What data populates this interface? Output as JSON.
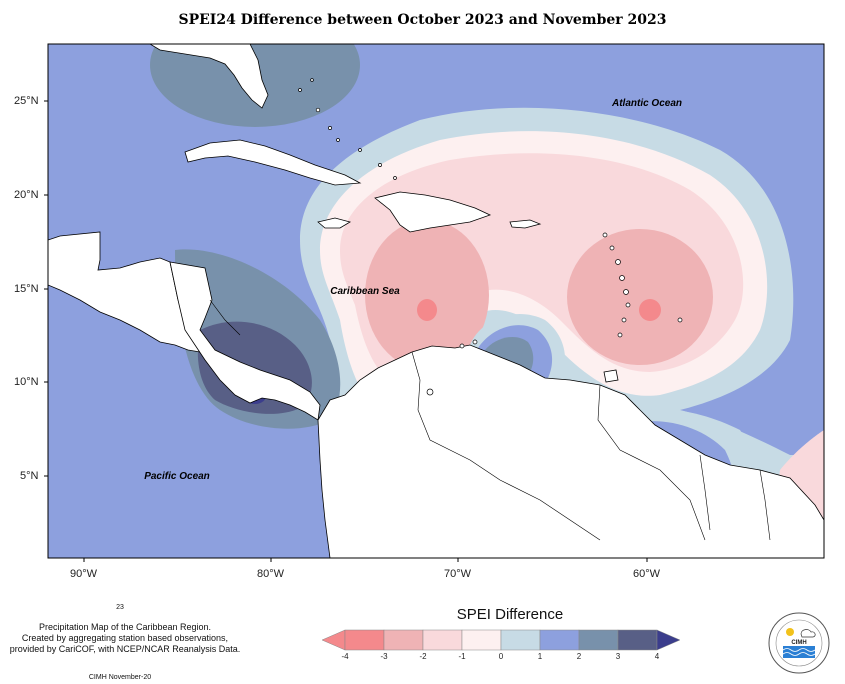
{
  "title": "SPEI24 Difference between October 2023 and November 2023",
  "labels": {
    "atlantic": "Atlantic Ocean",
    "caribbean": "Caribbean Sea",
    "pacific": "Pacific Ocean"
  },
  "lat_ticks": [
    "25°N",
    "20°N",
    "15°N",
    "10°N",
    "5°N"
  ],
  "lon_ticks": [
    "90°W",
    "80°W",
    "70°W",
    "60°W"
  ],
  "note": {
    "superscript": "23",
    "line1": "Precipitation Map of the Caribbean Region.",
    "line2": "Created by aggregating station based observations,",
    "line3": "provided by CariCOF, with NCEP/NCAR Reanalysis Data.",
    "footer": "CIMH November-20"
  },
  "legend": {
    "title": "SPEI Difference",
    "ticks": [
      "-4",
      "-3",
      "-2",
      "-1",
      "0",
      "1",
      "2",
      "3",
      "4"
    ],
    "colors": [
      "#f4898c",
      "#efb3b5",
      "#f9d9dc",
      "#fdf0f0",
      "#c7dbe5",
      "#8da0de",
      "#7891ab",
      "#585f86",
      "#3b3d8c"
    ]
  },
  "colors": {
    "base_positive": "#8da0de",
    "light_blue": "#c7dbe5",
    "light_pink": "#f9d9dc",
    "pink": "#efb3b5",
    "red": "#f4898c",
    "gray_blue": "#7891ab",
    "dark": "#585f86",
    "darkest": "#3b3d8c"
  }
}
